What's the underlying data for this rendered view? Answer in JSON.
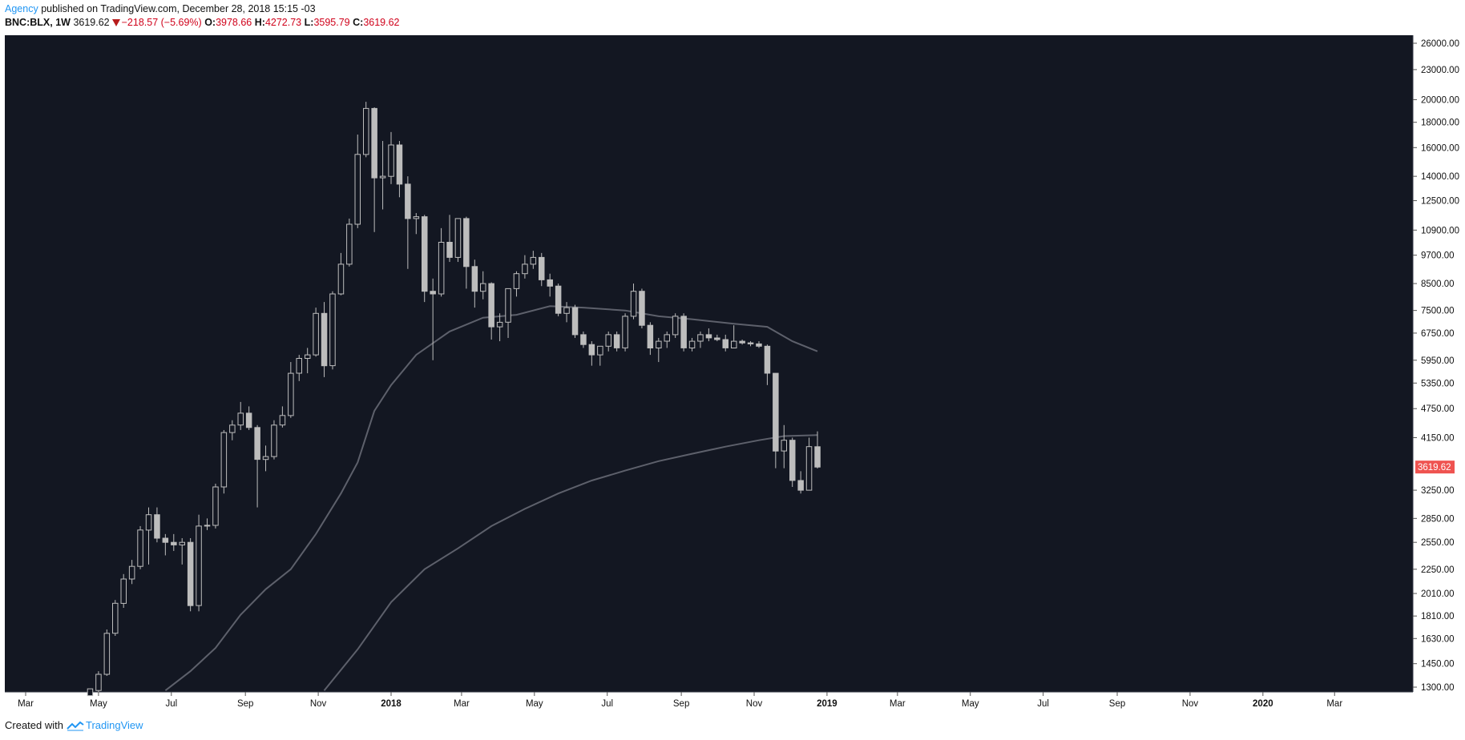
{
  "header": {
    "author": "Agency",
    "published_text": "published on TradingView.com, December 28, 2018 15:15 -03",
    "symbol": "BNC:BLX, 1W",
    "last": "3619.62",
    "change": "−218.57 (−5.69%)",
    "open_label": "O:",
    "open": "3978.66",
    "high_label": "H:",
    "high": "4272.73",
    "low_label": "L:",
    "low": "3595.79",
    "close_label": "C:",
    "close": "3619.62"
  },
  "footer": {
    "created_with": "Created with",
    "brand": "TradingView",
    "logo_icon": "tradingview-logo-icon"
  },
  "colors": {
    "background": "#131722",
    "candle": "#bdbdbd",
    "ma": "#5d606b",
    "price_tag": "#ef5350",
    "axis_text": "#111111"
  },
  "chart_data": {
    "type": "candlestick",
    "symbol": "BNC:BLX",
    "interval": "1W",
    "scale": "log",
    "ylim": [
      1300,
      26000
    ],
    "y_ticks": [
      "26000.00",
      "23000.00",
      "20000.00",
      "18000.00",
      "16000.00",
      "14000.00",
      "12500.00",
      "10900.00",
      "9700.00",
      "8500.00",
      "7500.00",
      "6750.00",
      "5950.00",
      "5350.00",
      "4750.00",
      "4150.00",
      "3250.00",
      "2850.00",
      "2550.00",
      "2250.00",
      "2010.00",
      "1810.00",
      "1630.00",
      "1450.00",
      "1300.00"
    ],
    "x_ticks": [
      "Mar",
      "May",
      "Jul",
      "Sep",
      "Nov",
      "2018",
      "Mar",
      "May",
      "Jul",
      "Sep",
      "Nov",
      "2019",
      "Mar",
      "May",
      "Jul",
      "Sep",
      "Nov",
      "2020",
      "Mar"
    ],
    "x_tick_dates": [
      "2017-03-01",
      "2017-05-01",
      "2017-07-01",
      "2017-09-01",
      "2017-11-01",
      "2018-01-01",
      "2018-03-01",
      "2018-05-01",
      "2018-07-01",
      "2018-09-01",
      "2018-11-01",
      "2019-01-01",
      "2019-03-01",
      "2019-05-01",
      "2019-07-01",
      "2019-09-01",
      "2019-11-01",
      "2020-01-01",
      "2020-03-01"
    ],
    "bold_ticks": [
      "2018",
      "2019",
      "2020"
    ],
    "last_price_label": "3619.62",
    "candles": [
      {
        "date": "2017-04-24",
        "o": 1250,
        "h": 1290,
        "l": 1250,
        "c": 1290
      },
      {
        "date": "2017-05-01",
        "o": 1280,
        "h": 1400,
        "l": 1270,
        "c": 1380
      },
      {
        "date": "2017-05-08",
        "o": 1380,
        "h": 1700,
        "l": 1370,
        "c": 1670
      },
      {
        "date": "2017-05-15",
        "o": 1670,
        "h": 1950,
        "l": 1650,
        "c": 1920
      },
      {
        "date": "2017-05-22",
        "o": 1920,
        "h": 2200,
        "l": 1880,
        "c": 2150
      },
      {
        "date": "2017-05-29",
        "o": 2150,
        "h": 2350,
        "l": 2100,
        "c": 2280
      },
      {
        "date": "2017-06-05",
        "o": 2280,
        "h": 2750,
        "l": 2250,
        "c": 2700
      },
      {
        "date": "2017-06-12",
        "o": 2700,
        "h": 3000,
        "l": 2300,
        "c": 2900
      },
      {
        "date": "2017-06-19",
        "o": 2900,
        "h": 3000,
        "l": 2550,
        "c": 2600
      },
      {
        "date": "2017-06-26",
        "o": 2600,
        "h": 2650,
        "l": 2400,
        "c": 2550
      },
      {
        "date": "2017-07-03",
        "o": 2550,
        "h": 2650,
        "l": 2450,
        "c": 2520
      },
      {
        "date": "2017-07-10",
        "o": 2520,
        "h": 2600,
        "l": 2300,
        "c": 2550
      },
      {
        "date": "2017-07-17",
        "o": 2550,
        "h": 2600,
        "l": 1850,
        "c": 1900
      },
      {
        "date": "2017-07-24",
        "o": 1900,
        "h": 2900,
        "l": 1850,
        "c": 2750
      },
      {
        "date": "2017-07-31",
        "o": 2750,
        "h": 2850,
        "l": 2700,
        "c": 2760
      },
      {
        "date": "2017-08-07",
        "o": 2760,
        "h": 3350,
        "l": 2720,
        "c": 3300
      },
      {
        "date": "2017-08-14",
        "o": 3300,
        "h": 4300,
        "l": 3200,
        "c": 4250
      },
      {
        "date": "2017-08-21",
        "o": 4250,
        "h": 4500,
        "l": 4100,
        "c": 4400
      },
      {
        "date": "2017-08-28",
        "o": 4400,
        "h": 4900,
        "l": 4300,
        "c": 4650
      },
      {
        "date": "2017-09-04",
        "o": 4650,
        "h": 4800,
        "l": 4300,
        "c": 4350
      },
      {
        "date": "2017-09-11",
        "o": 4350,
        "h": 4400,
        "l": 3000,
        "c": 3750
      },
      {
        "date": "2017-09-18",
        "o": 3750,
        "h": 4000,
        "l": 3550,
        "c": 3800
      },
      {
        "date": "2017-09-25",
        "o": 3800,
        "h": 4500,
        "l": 3750,
        "c": 4400
      },
      {
        "date": "2017-10-02",
        "o": 4400,
        "h": 4800,
        "l": 4350,
        "c": 4600
      },
      {
        "date": "2017-10-09",
        "o": 4600,
        "h": 5900,
        "l": 4550,
        "c": 5600
      },
      {
        "date": "2017-10-16",
        "o": 5600,
        "h": 6100,
        "l": 5400,
        "c": 6000
      },
      {
        "date": "2017-10-23",
        "o": 6000,
        "h": 6300,
        "l": 5600,
        "c": 6100
      },
      {
        "date": "2017-10-30",
        "o": 6100,
        "h": 7600,
        "l": 6050,
        "c": 7400
      },
      {
        "date": "2017-11-06",
        "o": 7400,
        "h": 7800,
        "l": 5500,
        "c": 5800
      },
      {
        "date": "2017-11-13",
        "o": 5800,
        "h": 8200,
        "l": 5700,
        "c": 8100
      },
      {
        "date": "2017-11-20",
        "o": 8100,
        "h": 9800,
        "l": 8050,
        "c": 9300
      },
      {
        "date": "2017-11-27",
        "o": 9300,
        "h": 11500,
        "l": 9200,
        "c": 11200
      },
      {
        "date": "2017-12-04",
        "o": 11200,
        "h": 17000,
        "l": 11000,
        "c": 15500
      },
      {
        "date": "2017-12-11",
        "o": 15500,
        "h": 19800,
        "l": 15300,
        "c": 19200
      },
      {
        "date": "2017-12-18",
        "o": 19200,
        "h": 19300,
        "l": 10800,
        "c": 13900
      },
      {
        "date": "2017-12-25",
        "o": 13900,
        "h": 16500,
        "l": 12000,
        "c": 14000
      },
      {
        "date": "2018-01-01",
        "o": 14000,
        "h": 17200,
        "l": 13500,
        "c": 16200
      },
      {
        "date": "2018-01-08",
        "o": 16200,
        "h": 16500,
        "l": 12700,
        "c": 13500
      },
      {
        "date": "2018-01-15",
        "o": 13500,
        "h": 14000,
        "l": 9100,
        "c": 11500
      },
      {
        "date": "2018-01-22",
        "o": 11500,
        "h": 11800,
        "l": 10700,
        "c": 11600
      },
      {
        "date": "2018-01-29",
        "o": 11600,
        "h": 11700,
        "l": 7800,
        "c": 8200
      },
      {
        "date": "2018-02-05",
        "o": 8200,
        "h": 8700,
        "l": 5950,
        "c": 8100
      },
      {
        "date": "2018-02-12",
        "o": 8100,
        "h": 11000,
        "l": 8000,
        "c": 10300
      },
      {
        "date": "2018-02-19",
        "o": 10300,
        "h": 11700,
        "l": 9400,
        "c": 9600
      },
      {
        "date": "2018-02-26",
        "o": 9600,
        "h": 11500,
        "l": 9400,
        "c": 11500
      },
      {
        "date": "2018-03-05",
        "o": 11500,
        "h": 11600,
        "l": 8300,
        "c": 9200
      },
      {
        "date": "2018-03-12",
        "o": 9200,
        "h": 9500,
        "l": 7600,
        "c": 8200
      },
      {
        "date": "2018-03-19",
        "o": 8200,
        "h": 9000,
        "l": 7900,
        "c": 8500
      },
      {
        "date": "2018-03-26",
        "o": 8500,
        "h": 8550,
        "l": 6550,
        "c": 6950
      },
      {
        "date": "2018-04-02",
        "o": 6950,
        "h": 7400,
        "l": 6500,
        "c": 7100
      },
      {
        "date": "2018-04-09",
        "o": 7100,
        "h": 8300,
        "l": 6600,
        "c": 8300
      },
      {
        "date": "2018-04-16",
        "o": 8300,
        "h": 9000,
        "l": 8000,
        "c": 8900
      },
      {
        "date": "2018-04-23",
        "o": 8900,
        "h": 9700,
        "l": 8700,
        "c": 9300
      },
      {
        "date": "2018-04-30",
        "o": 9300,
        "h": 9900,
        "l": 9100,
        "c": 9600
      },
      {
        "date": "2018-05-07",
        "o": 9600,
        "h": 9800,
        "l": 8400,
        "c": 8650
      },
      {
        "date": "2018-05-14",
        "o": 8650,
        "h": 8900,
        "l": 8000,
        "c": 8400
      },
      {
        "date": "2018-05-21",
        "o": 8400,
        "h": 8500,
        "l": 7300,
        "c": 7400
      },
      {
        "date": "2018-05-28",
        "o": 7400,
        "h": 7800,
        "l": 7100,
        "c": 7600
      },
      {
        "date": "2018-06-04",
        "o": 7600,
        "h": 7700,
        "l": 6600,
        "c": 6700
      },
      {
        "date": "2018-06-11",
        "o": 6700,
        "h": 6800,
        "l": 6300,
        "c": 6400
      },
      {
        "date": "2018-06-18",
        "o": 6400,
        "h": 6500,
        "l": 5800,
        "c": 6100
      },
      {
        "date": "2018-06-25",
        "o": 6100,
        "h": 6300,
        "l": 5800,
        "c": 6350
      },
      {
        "date": "2018-07-02",
        "o": 6350,
        "h": 6800,
        "l": 6200,
        "c": 6700
      },
      {
        "date": "2018-07-09",
        "o": 6700,
        "h": 6800,
        "l": 6200,
        "c": 6300
      },
      {
        "date": "2018-07-16",
        "o": 6300,
        "h": 7400,
        "l": 6200,
        "c": 7300
      },
      {
        "date": "2018-07-23",
        "o": 7300,
        "h": 8500,
        "l": 7200,
        "c": 8200
      },
      {
        "date": "2018-07-30",
        "o": 8200,
        "h": 8300,
        "l": 6900,
        "c": 7000
      },
      {
        "date": "2018-08-06",
        "o": 7000,
        "h": 7100,
        "l": 6100,
        "c": 6300
      },
      {
        "date": "2018-08-13",
        "o": 6300,
        "h": 6600,
        "l": 5900,
        "c": 6500
      },
      {
        "date": "2018-08-20",
        "o": 6500,
        "h": 6800,
        "l": 6300,
        "c": 6700
      },
      {
        "date": "2018-08-27",
        "o": 6700,
        "h": 7400,
        "l": 6600,
        "c": 7300
      },
      {
        "date": "2018-09-03",
        "o": 7300,
        "h": 7400,
        "l": 6200,
        "c": 6300
      },
      {
        "date": "2018-09-10",
        "o": 6300,
        "h": 6600,
        "l": 6200,
        "c": 6500
      },
      {
        "date": "2018-09-17",
        "o": 6500,
        "h": 6800,
        "l": 6300,
        "c": 6700
      },
      {
        "date": "2018-09-24",
        "o": 6700,
        "h": 6900,
        "l": 6500,
        "c": 6600
      },
      {
        "date": "2018-10-01",
        "o": 6600,
        "h": 6700,
        "l": 6500,
        "c": 6550
      },
      {
        "date": "2018-10-08",
        "o": 6550,
        "h": 6700,
        "l": 6200,
        "c": 6300
      },
      {
        "date": "2018-10-15",
        "o": 6300,
        "h": 7000,
        "l": 6300,
        "c": 6500
      },
      {
        "date": "2018-10-22",
        "o": 6500,
        "h": 6550,
        "l": 6400,
        "c": 6450
      },
      {
        "date": "2018-10-29",
        "o": 6450,
        "h": 6500,
        "l": 6350,
        "c": 6420
      },
      {
        "date": "2018-11-05",
        "o": 6420,
        "h": 6500,
        "l": 6300,
        "c": 6350
      },
      {
        "date": "2018-11-12",
        "o": 6350,
        "h": 6400,
        "l": 5300,
        "c": 5600
      },
      {
        "date": "2018-11-19",
        "o": 5600,
        "h": 5600,
        "l": 3600,
        "c": 3900
      },
      {
        "date": "2018-11-26",
        "o": 3900,
        "h": 4400,
        "l": 3600,
        "c": 4100
      },
      {
        "date": "2018-12-03",
        "o": 4100,
        "h": 4150,
        "l": 3300,
        "c": 3400
      },
      {
        "date": "2018-12-10",
        "o": 3400,
        "h": 3550,
        "l": 3200,
        "c": 3250
      },
      {
        "date": "2018-12-17",
        "o": 3250,
        "h": 4150,
        "l": 3250,
        "c": 3980
      },
      {
        "date": "2018-12-24",
        "o": 3978.66,
        "h": 4272.73,
        "l": 3595.79,
        "c": 3619.62
      }
    ],
    "series": [
      {
        "values": [
          {
            "date": "2017-06-26",
            "v": 1280
          },
          {
            "date": "2017-07-17",
            "v": 1400
          },
          {
            "date": "2017-08-07",
            "v": 1560
          },
          {
            "date": "2017-08-28",
            "v": 1820
          },
          {
            "date": "2017-09-18",
            "v": 2050
          },
          {
            "date": "2017-10-09",
            "v": 2250
          },
          {
            "date": "2017-10-30",
            "v": 2650
          },
          {
            "date": "2017-11-20",
            "v": 3200
          },
          {
            "date": "2017-12-04",
            "v": 3700
          },
          {
            "date": "2017-12-18",
            "v": 4700
          },
          {
            "date": "2018-01-01",
            "v": 5300
          },
          {
            "date": "2018-01-22",
            "v": 6100
          },
          {
            "date": "2018-02-19",
            "v": 6800
          },
          {
            "date": "2018-03-19",
            "v": 7250
          },
          {
            "date": "2018-04-16",
            "v": 7350
          },
          {
            "date": "2018-05-14",
            "v": 7650
          },
          {
            "date": "2018-06-11",
            "v": 7600
          },
          {
            "date": "2018-07-16",
            "v": 7500
          },
          {
            "date": "2018-08-13",
            "v": 7300
          },
          {
            "date": "2018-09-10",
            "v": 7200
          },
          {
            "date": "2018-10-15",
            "v": 7050
          },
          {
            "date": "2018-11-12",
            "v": 6950
          },
          {
            "date": "2018-12-03",
            "v": 6500
          },
          {
            "date": "2018-12-24",
            "v": 6200
          }
        ]
      },
      {
        "values": [
          {
            "date": "2017-11-06",
            "v": 1280
          },
          {
            "date": "2017-12-04",
            "v": 1550
          },
          {
            "date": "2018-01-01",
            "v": 1930
          },
          {
            "date": "2018-01-29",
            "v": 2250
          },
          {
            "date": "2018-02-26",
            "v": 2480
          },
          {
            "date": "2018-03-26",
            "v": 2750
          },
          {
            "date": "2018-04-23",
            "v": 2980
          },
          {
            "date": "2018-05-21",
            "v": 3200
          },
          {
            "date": "2018-06-18",
            "v": 3400
          },
          {
            "date": "2018-07-16",
            "v": 3560
          },
          {
            "date": "2018-08-13",
            "v": 3720
          },
          {
            "date": "2018-09-10",
            "v": 3850
          },
          {
            "date": "2018-10-08",
            "v": 3980
          },
          {
            "date": "2018-11-05",
            "v": 4100
          },
          {
            "date": "2018-11-26",
            "v": 4180
          },
          {
            "date": "2018-12-24",
            "v": 4200
          }
        ]
      }
    ]
  }
}
